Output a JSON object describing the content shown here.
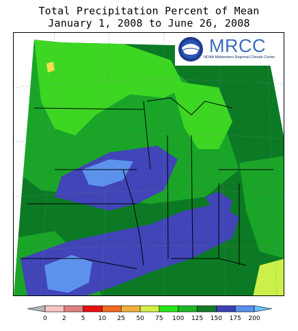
{
  "title": {
    "line1": "Total Precipitation Percent of Mean",
    "line2": "January 1, 2008 to June 26, 2008"
  },
  "logo": {
    "text": "MRCC",
    "subtitle": "NOAA Midwestern Regional Climate Center",
    "icon": "noaa-globe-icon"
  },
  "legend": {
    "labels": [
      "0",
      "2",
      "5",
      "10",
      "25",
      "50",
      "75",
      "100",
      "125",
      "150",
      "175",
      "200"
    ],
    "colors": [
      "#b8b8b8",
      "#f7c4c4",
      "#e08080",
      "#e81010",
      "#f26a1e",
      "#f0b23c",
      "#d4f048",
      "#22e818",
      "#1cb624",
      "#127d26",
      "#3e40b4",
      "#5b90ec",
      "#68c2ff"
    ]
  },
  "map_colors": {
    "light_green": "#3dd623",
    "green": "#1aa528",
    "dark_green": "#0c7a24",
    "blue": "#4145b8",
    "light_blue": "#5c92ec",
    "yellow_green": "#ccf04a",
    "yellow": "#f0e050",
    "outside": "#ffffff"
  }
}
